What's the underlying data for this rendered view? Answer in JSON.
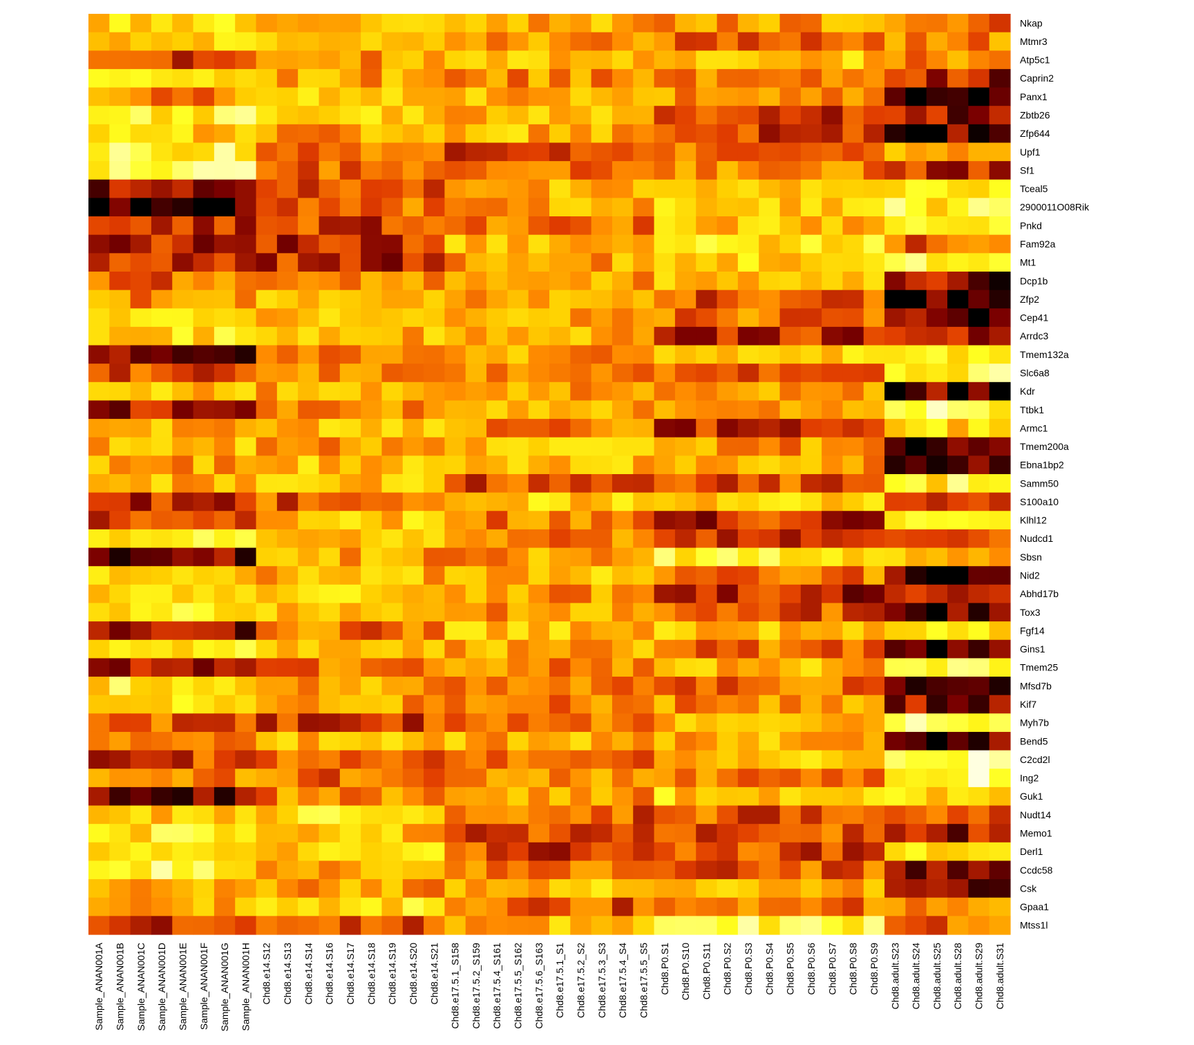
{
  "chart_data": {
    "type": "heatmap",
    "title": "",
    "xlabel": "",
    "ylabel": "",
    "legend": "none",
    "colormap": [
      "#000000",
      "#7a0000",
      "#e03c00",
      "#ff8c00",
      "#ffd000",
      "#ffff20",
      "#ffffe0"
    ],
    "columns": [
      "Sample_ANAN001A",
      "Sample_ANAN001B",
      "Sample_ANAN001C",
      "Sample_ANAN001D",
      "Sample_ANAN001E",
      "Sample_ANAN001F",
      "Sample_ANAN001G",
      "Sample_ANAN001H",
      "Chd8.e14.S12",
      "Chd8.e14.S13",
      "Chd8.e14.S14",
      "Chd8.e14.S16",
      "Chd8.e14.S17",
      "Chd8.e14.S18",
      "Chd8.e14.S19",
      "Chd8.e14.S20",
      "Chd8.e14.S21",
      "Chd8.e17.5.1_S158",
      "Chd8.e17.5.2_S159",
      "Chd8.e17.5.4_S161",
      "Chd8.e17.5.5_S162",
      "Chd8.e17.5.6_S163",
      "Chd8.e17.5.1_S1",
      "Chd8.e17.5.2_S2",
      "Chd8.e17.5.3_S3",
      "Chd8.e17.5.4_S4",
      "Chd8.e17.5.5_S5",
      "Chd8.P0.S1",
      "Chd8.P0.S10",
      "Chd8.P0.S11",
      "Chd8.P0.S2",
      "Chd8.P0.S3",
      "Chd8.P0.S4",
      "Chd8.P0.S5",
      "Chd8.P0.S6",
      "Chd8.P0.S7",
      "Chd8.P0.S8",
      "Chd8.P0.S9",
      "Chd8.adult.S23",
      "Chd8.adult.S24",
      "Chd8.adult.S25",
      "Chd8.adult.S28",
      "Chd8.adult.S29",
      "Chd8.adult.S31"
    ],
    "rows": [
      "Nkap",
      "Mtmr3",
      "Atp5c1",
      "Caprin2",
      "Panx1",
      "Zbtb26",
      "Zfp644",
      "Upf1",
      "Sf1",
      "Tceal5",
      "2900011O08Rik",
      "Pnkd",
      "Fam92a",
      "Mt1",
      "Dcp1b",
      "Zfp2",
      "Cep41",
      "Arrdc3",
      "Tmem132a",
      "Slc6a8",
      "Kdr",
      "Ttbk1",
      "Armc1",
      "Tmem200a",
      "Ebna1bp2",
      "Samm50",
      "S100a10",
      "Klhl12",
      "Nudcd1",
      "Sbsn",
      "Nid2",
      "Abhd17b",
      "Tox3",
      "Fgf14",
      "Gins1",
      "Tmem25",
      "Mfsd7b",
      "Kif7",
      "Myh7b",
      "Bend5",
      "C2cd2l",
      "Ing2",
      "Guk1",
      "Nudt14",
      "Memo1",
      "Derl1",
      "Ccdc58",
      "Csk",
      "Gpaa1",
      "Mtss1l"
    ],
    "groups": [
      8,
      9,
      10,
      11,
      6
    ],
    "group_levels": [
      [
        0.72,
        0.65,
        0.58,
        0.55,
        0.42
      ],
      [
        0.68,
        0.63,
        0.56,
        0.45,
        0.5
      ],
      [
        0.35,
        0.55,
        0.6,
        0.65,
        0.52
      ],
      [
        0.75,
        0.55,
        0.5,
        0.48,
        0.25
      ],
      [
        0.5,
        0.65,
        0.6,
        0.52,
        0.1
      ],
      [
        0.78,
        0.65,
        0.6,
        0.35,
        0.2
      ],
      [
        0.66,
        0.55,
        0.6,
        0.36,
        0.12
      ],
      [
        0.8,
        0.45,
        0.35,
        0.48,
        0.55
      ],
      [
        0.82,
        0.45,
        0.4,
        0.5,
        0.3
      ],
      [
        0.18,
        0.4,
        0.58,
        0.7,
        0.76
      ],
      [
        0.1,
        0.45,
        0.55,
        0.65,
        0.78
      ],
      [
        0.28,
        0.35,
        0.48,
        0.63,
        0.86
      ],
      [
        0.25,
        0.3,
        0.6,
        0.72,
        0.4
      ],
      [
        0.28,
        0.3,
        0.55,
        0.7,
        0.85
      ],
      [
        0.45,
        0.5,
        0.55,
        0.6,
        0.18
      ],
      [
        0.52,
        0.65,
        0.6,
        0.4,
        0.08
      ],
      [
        0.74,
        0.62,
        0.58,
        0.45,
        0.12
      ],
      [
        0.72,
        0.6,
        0.6,
        0.3,
        0.25
      ],
      [
        0.12,
        0.5,
        0.55,
        0.65,
        0.75
      ],
      [
        0.35,
        0.48,
        0.5,
        0.45,
        0.82
      ],
      [
        0.62,
        0.58,
        0.55,
        0.55,
        0.12
      ],
      [
        0.25,
        0.5,
        0.55,
        0.58,
        0.85
      ],
      [
        0.6,
        0.65,
        0.48,
        0.3,
        0.7
      ],
      [
        0.6,
        0.55,
        0.65,
        0.52,
        0.15
      ],
      [
        0.55,
        0.62,
        0.6,
        0.55,
        0.12
      ],
      [
        0.6,
        0.65,
        0.35,
        0.4,
        0.78
      ],
      [
        0.3,
        0.4,
        0.68,
        0.65,
        0.38
      ],
      [
        0.35,
        0.65,
        0.48,
        0.3,
        0.75
      ],
      [
        0.8,
        0.6,
        0.5,
        0.25,
        0.45
      ],
      [
        0.18,
        0.55,
        0.55,
        0.78,
        0.58
      ],
      [
        0.68,
        0.6,
        0.62,
        0.45,
        0.12
      ],
      [
        0.65,
        0.65,
        0.52,
        0.28,
        0.35
      ],
      [
        0.78,
        0.6,
        0.55,
        0.4,
        0.1
      ],
      [
        0.2,
        0.45,
        0.62,
        0.65,
        0.7
      ],
      [
        0.72,
        0.6,
        0.55,
        0.45,
        0.15
      ],
      [
        0.3,
        0.45,
        0.5,
        0.6,
        0.82
      ],
      [
        0.75,
        0.55,
        0.48,
        0.42,
        0.2
      ],
      [
        0.78,
        0.55,
        0.45,
        0.5,
        0.2
      ],
      [
        0.4,
        0.35,
        0.5,
        0.65,
        0.82
      ],
      [
        0.42,
        0.62,
        0.58,
        0.58,
        0.1
      ],
      [
        0.35,
        0.38,
        0.45,
        0.62,
        0.85
      ],
      [
        0.5,
        0.42,
        0.48,
        0.48,
        0.86
      ],
      [
        0.15,
        0.48,
        0.52,
        0.68,
        0.72
      ],
      [
        0.62,
        0.72,
        0.4,
        0.4,
        0.35
      ],
      [
        0.75,
        0.62,
        0.4,
        0.4,
        0.25
      ],
      [
        0.65,
        0.68,
        0.35,
        0.35,
        0.7
      ],
      [
        0.8,
        0.58,
        0.5,
        0.4,
        0.15
      ],
      [
        0.55,
        0.55,
        0.62,
        0.6,
        0.12
      ],
      [
        0.62,
        0.72,
        0.4,
        0.45,
        0.55
      ],
      [
        0.28,
        0.4,
        0.6,
        0.8,
        0.45
      ]
    ]
  }
}
